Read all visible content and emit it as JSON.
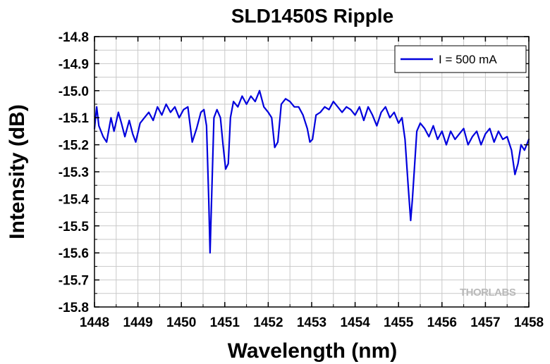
{
  "chart_data": {
    "type": "line",
    "title": "SLD1450S Ripple",
    "xlabel": "Wavelength (nm)",
    "ylabel": "Intensity (dB)",
    "xlim": [
      1448,
      1458
    ],
    "ylim": [
      -15.8,
      -14.8
    ],
    "x_ticks": [
      "1448",
      "1449",
      "1450",
      "1451",
      "1452",
      "1453",
      "1454",
      "1455",
      "1456",
      "1457",
      "1458"
    ],
    "y_ticks": [
      "-14.8",
      "-14.9",
      "-15.0",
      "-15.1",
      "-15.2",
      "-15.3",
      "-15.4",
      "-15.5",
      "-15.6",
      "-15.7",
      "-15.8"
    ],
    "grid": true,
    "legend_position": "top-right",
    "logo": "THORLABS",
    "colors": {
      "series": "#0000dd",
      "grid": "#c9c9c9",
      "axes": "#000000"
    },
    "series": [
      {
        "name": "I = 500 mA",
        "x": [
          1448.0,
          1448.05,
          1448.1,
          1448.2,
          1448.28,
          1448.38,
          1448.45,
          1448.55,
          1448.62,
          1448.7,
          1448.8,
          1448.88,
          1448.95,
          1449.05,
          1449.15,
          1449.25,
          1449.35,
          1449.45,
          1449.55,
          1449.65,
          1449.75,
          1449.85,
          1449.95,
          1450.05,
          1450.15,
          1450.25,
          1450.35,
          1450.45,
          1450.52,
          1450.58,
          1450.63,
          1450.66,
          1450.7,
          1450.75,
          1450.82,
          1450.9,
          1450.96,
          1451.02,
          1451.08,
          1451.13,
          1451.2,
          1451.3,
          1451.4,
          1451.5,
          1451.6,
          1451.7,
          1451.8,
          1451.9,
          1452.0,
          1452.08,
          1452.15,
          1452.22,
          1452.3,
          1452.4,
          1452.5,
          1452.6,
          1452.7,
          1452.8,
          1452.9,
          1452.96,
          1453.02,
          1453.1,
          1453.2,
          1453.3,
          1453.4,
          1453.5,
          1453.6,
          1453.7,
          1453.8,
          1453.9,
          1454.0,
          1454.1,
          1454.2,
          1454.3,
          1454.4,
          1454.5,
          1454.6,
          1454.7,
          1454.8,
          1454.9,
          1455.0,
          1455.08,
          1455.15,
          1455.22,
          1455.28,
          1455.32,
          1455.36,
          1455.42,
          1455.5,
          1455.6,
          1455.7,
          1455.8,
          1455.9,
          1456.0,
          1456.1,
          1456.2,
          1456.3,
          1456.4,
          1456.5,
          1456.6,
          1456.7,
          1456.8,
          1456.9,
          1457.0,
          1457.1,
          1457.2,
          1457.3,
          1457.4,
          1457.5,
          1457.6,
          1457.68,
          1457.75,
          1457.82,
          1457.9,
          1458.0
        ],
        "y": [
          -15.14,
          -15.06,
          -15.13,
          -15.17,
          -15.19,
          -15.1,
          -15.15,
          -15.08,
          -15.12,
          -15.17,
          -15.11,
          -15.16,
          -15.19,
          -15.12,
          -15.1,
          -15.08,
          -15.11,
          -15.06,
          -15.09,
          -15.05,
          -15.08,
          -15.06,
          -15.1,
          -15.07,
          -15.06,
          -15.19,
          -15.14,
          -15.08,
          -15.07,
          -15.13,
          -15.4,
          -15.6,
          -15.38,
          -15.1,
          -15.07,
          -15.1,
          -15.2,
          -15.29,
          -15.27,
          -15.1,
          -15.04,
          -15.06,
          -15.02,
          -15.05,
          -15.02,
          -15.04,
          -15.0,
          -15.06,
          -15.08,
          -15.1,
          -15.21,
          -15.19,
          -15.05,
          -15.03,
          -15.04,
          -15.06,
          -15.06,
          -15.09,
          -15.14,
          -15.19,
          -15.18,
          -15.09,
          -15.08,
          -15.06,
          -15.07,
          -15.04,
          -15.06,
          -15.08,
          -15.06,
          -15.07,
          -15.09,
          -15.06,
          -15.11,
          -15.06,
          -15.09,
          -15.13,
          -15.08,
          -15.06,
          -15.1,
          -15.08,
          -15.12,
          -15.1,
          -15.18,
          -15.35,
          -15.48,
          -15.4,
          -15.3,
          -15.15,
          -15.12,
          -15.14,
          -15.17,
          -15.13,
          -15.18,
          -15.15,
          -15.2,
          -15.15,
          -15.18,
          -15.16,
          -15.14,
          -15.2,
          -15.17,
          -15.15,
          -15.2,
          -15.16,
          -15.14,
          -15.19,
          -15.15,
          -15.18,
          -15.17,
          -15.22,
          -15.31,
          -15.27,
          -15.2,
          -15.22,
          -15.18
        ]
      }
    ]
  }
}
